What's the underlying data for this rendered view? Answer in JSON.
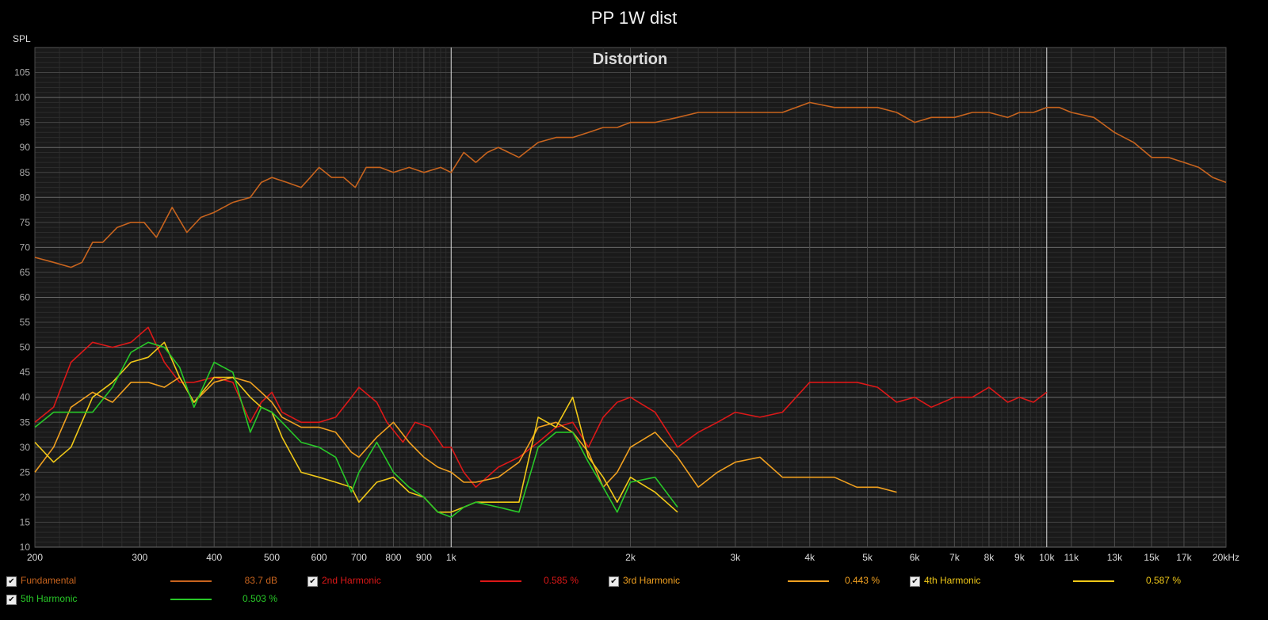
{
  "title": "PP 1W dist",
  "ylabel": "SPL",
  "chart_data": {
    "type": "line",
    "title": "Distortion",
    "x_scale": "log",
    "xlim": [
      200,
      20000
    ],
    "ylim": [
      10,
      110
    ],
    "y_ticks": [
      10,
      15,
      20,
      25,
      30,
      35,
      40,
      45,
      50,
      55,
      60,
      65,
      70,
      75,
      80,
      85,
      90,
      95,
      100,
      105
    ],
    "x_ticks": [
      {
        "v": 200,
        "l": "200"
      },
      {
        "v": 300,
        "l": "300"
      },
      {
        "v": 400,
        "l": "400"
      },
      {
        "v": 500,
        "l": "500"
      },
      {
        "v": 600,
        "l": "600"
      },
      {
        "v": 700,
        "l": "700"
      },
      {
        "v": 800,
        "l": "800"
      },
      {
        "v": 900,
        "l": "900"
      },
      {
        "v": 1000,
        "l": "1k"
      },
      {
        "v": 2000,
        "l": "2k"
      },
      {
        "v": 3000,
        "l": "3k"
      },
      {
        "v": 4000,
        "l": "4k"
      },
      {
        "v": 5000,
        "l": "5k"
      },
      {
        "v": 6000,
        "l": "6k"
      },
      {
        "v": 7000,
        "l": "7k"
      },
      {
        "v": 8000,
        "l": "8k"
      },
      {
        "v": 9000,
        "l": "9k"
      },
      {
        "v": 10000,
        "l": "10k"
      },
      {
        "v": 11000,
        "l": "11k"
      },
      {
        "v": 13000,
        "l": "13k"
      },
      {
        "v": 15000,
        "l": "15k"
      },
      {
        "v": 17000,
        "l": "17k"
      },
      {
        "v": 20000,
        "l": "20kHz"
      }
    ],
    "series": [
      {
        "name": "Fundamental",
        "color": "#c8641e",
        "legend_value": "83.7 dB",
        "points": [
          [
            200,
            68
          ],
          [
            215,
            67
          ],
          [
            230,
            66
          ],
          [
            240,
            67
          ],
          [
            250,
            71
          ],
          [
            260,
            71
          ],
          [
            275,
            74
          ],
          [
            290,
            75
          ],
          [
            305,
            75
          ],
          [
            320,
            72
          ],
          [
            340,
            78
          ],
          [
            360,
            73
          ],
          [
            380,
            76
          ],
          [
            400,
            77
          ],
          [
            430,
            79
          ],
          [
            460,
            80
          ],
          [
            480,
            83
          ],
          [
            500,
            84
          ],
          [
            530,
            83
          ],
          [
            560,
            82
          ],
          [
            580,
            84
          ],
          [
            600,
            86
          ],
          [
            630,
            84
          ],
          [
            660,
            84
          ],
          [
            690,
            82
          ],
          [
            720,
            86
          ],
          [
            760,
            86
          ],
          [
            800,
            85
          ],
          [
            850,
            86
          ],
          [
            900,
            85
          ],
          [
            960,
            86
          ],
          [
            1000,
            85
          ],
          [
            1050,
            89
          ],
          [
            1100,
            87
          ],
          [
            1150,
            89
          ],
          [
            1200,
            90
          ],
          [
            1300,
            88
          ],
          [
            1400,
            91
          ],
          [
            1500,
            92
          ],
          [
            1600,
            92
          ],
          [
            1700,
            93
          ],
          [
            1800,
            94
          ],
          [
            1900,
            94
          ],
          [
            2000,
            95
          ],
          [
            2200,
            95
          ],
          [
            2400,
            96
          ],
          [
            2600,
            97
          ],
          [
            2800,
            97
          ],
          [
            3000,
            97
          ],
          [
            3300,
            97
          ],
          [
            3600,
            97
          ],
          [
            4000,
            99
          ],
          [
            4400,
            98
          ],
          [
            4800,
            98
          ],
          [
            5200,
            98
          ],
          [
            5600,
            97
          ],
          [
            6000,
            95
          ],
          [
            6400,
            96
          ],
          [
            7000,
            96
          ],
          [
            7500,
            97
          ],
          [
            8000,
            97
          ],
          [
            8600,
            96
          ],
          [
            9000,
            97
          ],
          [
            9500,
            97
          ],
          [
            10000,
            98
          ],
          [
            10500,
            98
          ],
          [
            11000,
            97
          ],
          [
            12000,
            96
          ],
          [
            13000,
            93
          ],
          [
            14000,
            91
          ],
          [
            15000,
            88
          ],
          [
            16000,
            88
          ],
          [
            17000,
            87
          ],
          [
            18000,
            86
          ],
          [
            19000,
            84
          ],
          [
            20000,
            83
          ]
        ]
      },
      {
        "name": "2nd Harmonic",
        "color": "#dd1818",
        "legend_value": "0.585 %",
        "points": [
          [
            200,
            35
          ],
          [
            215,
            38
          ],
          [
            230,
            47
          ],
          [
            250,
            51
          ],
          [
            270,
            50
          ],
          [
            290,
            51
          ],
          [
            310,
            54
          ],
          [
            330,
            47
          ],
          [
            350,
            43
          ],
          [
            370,
            43
          ],
          [
            400,
            44
          ],
          [
            430,
            43
          ],
          [
            460,
            35
          ],
          [
            480,
            39
          ],
          [
            500,
            41
          ],
          [
            520,
            37
          ],
          [
            560,
            35
          ],
          [
            600,
            35
          ],
          [
            640,
            36
          ],
          [
            680,
            40
          ],
          [
            700,
            42
          ],
          [
            750,
            39
          ],
          [
            780,
            35
          ],
          [
            830,
            31
          ],
          [
            870,
            35
          ],
          [
            920,
            34
          ],
          [
            970,
            30
          ],
          [
            1000,
            30
          ],
          [
            1050,
            25
          ],
          [
            1100,
            22
          ],
          [
            1200,
            26
          ],
          [
            1300,
            28
          ],
          [
            1400,
            31
          ],
          [
            1500,
            34
          ],
          [
            1600,
            35
          ],
          [
            1700,
            30
          ],
          [
            1800,
            36
          ],
          [
            1900,
            39
          ],
          [
            2000,
            40
          ],
          [
            2200,
            37
          ],
          [
            2400,
            30
          ],
          [
            2600,
            33
          ],
          [
            2800,
            35
          ],
          [
            3000,
            37
          ],
          [
            3300,
            36
          ],
          [
            3600,
            37
          ],
          [
            4000,
            43
          ],
          [
            4400,
            43
          ],
          [
            4800,
            43
          ],
          [
            5200,
            42
          ],
          [
            5600,
            39
          ],
          [
            6000,
            40
          ],
          [
            6400,
            38
          ],
          [
            7000,
            40
          ],
          [
            7500,
            40
          ],
          [
            8000,
            42
          ],
          [
            8600,
            39
          ],
          [
            9000,
            40
          ],
          [
            9500,
            39
          ],
          [
            10000,
            41
          ]
        ]
      },
      {
        "name": "3rd Harmonic",
        "color": "#f0a020",
        "legend_value": "0.443 %",
        "points": [
          [
            200,
            25
          ],
          [
            215,
            30
          ],
          [
            230,
            38
          ],
          [
            250,
            41
          ],
          [
            270,
            39
          ],
          [
            290,
            43
          ],
          [
            310,
            43
          ],
          [
            330,
            42
          ],
          [
            350,
            44
          ],
          [
            370,
            39
          ],
          [
            400,
            43
          ],
          [
            430,
            44
          ],
          [
            460,
            43
          ],
          [
            480,
            41
          ],
          [
            500,
            39
          ],
          [
            520,
            36
          ],
          [
            560,
            34
          ],
          [
            600,
            34
          ],
          [
            640,
            33
          ],
          [
            680,
            29
          ],
          [
            700,
            28
          ],
          [
            750,
            32
          ],
          [
            800,
            35
          ],
          [
            850,
            31
          ],
          [
            900,
            28
          ],
          [
            950,
            26
          ],
          [
            1000,
            25
          ],
          [
            1050,
            23
          ],
          [
            1100,
            23
          ],
          [
            1200,
            24
          ],
          [
            1300,
            27
          ],
          [
            1400,
            34
          ],
          [
            1500,
            35
          ],
          [
            1600,
            33
          ],
          [
            1700,
            29
          ],
          [
            1800,
            22
          ],
          [
            1900,
            25
          ],
          [
            2000,
            30
          ],
          [
            2200,
            33
          ],
          [
            2400,
            28
          ],
          [
            2600,
            22
          ],
          [
            2800,
            25
          ],
          [
            3000,
            27
          ],
          [
            3300,
            28
          ],
          [
            3600,
            24
          ],
          [
            4000,
            24
          ],
          [
            4400,
            24
          ],
          [
            4800,
            22
          ],
          [
            5200,
            22
          ],
          [
            5600,
            21
          ]
        ]
      },
      {
        "name": "4th Harmonic",
        "color": "#f0c818",
        "legend_value": "0.587 %",
        "points": [
          [
            200,
            31
          ],
          [
            215,
            27
          ],
          [
            230,
            30
          ],
          [
            250,
            40
          ],
          [
            270,
            43
          ],
          [
            290,
            47
          ],
          [
            310,
            48
          ],
          [
            330,
            51
          ],
          [
            350,
            44
          ],
          [
            370,
            39
          ],
          [
            400,
            44
          ],
          [
            430,
            44
          ],
          [
            460,
            40
          ],
          [
            480,
            38
          ],
          [
            500,
            37
          ],
          [
            520,
            32
          ],
          [
            560,
            25
          ],
          [
            600,
            24
          ],
          [
            640,
            23
          ],
          [
            680,
            22
          ],
          [
            700,
            19
          ],
          [
            750,
            23
          ],
          [
            800,
            24
          ],
          [
            850,
            21
          ],
          [
            900,
            20
          ],
          [
            950,
            17
          ],
          [
            1000,
            17
          ],
          [
            1050,
            18
          ],
          [
            1100,
            19
          ],
          [
            1200,
            19
          ],
          [
            1300,
            19
          ],
          [
            1400,
            36
          ],
          [
            1500,
            34
          ],
          [
            1600,
            40
          ],
          [
            1700,
            28
          ],
          [
            1800,
            24
          ],
          [
            1900,
            19
          ],
          [
            2000,
            24
          ],
          [
            2200,
            21
          ],
          [
            2400,
            17
          ]
        ]
      },
      {
        "name": "5th Harmonic",
        "color": "#28c828",
        "legend_value": "0.503 %",
        "points": [
          [
            200,
            34
          ],
          [
            215,
            37
          ],
          [
            230,
            37
          ],
          [
            250,
            37
          ],
          [
            270,
            42
          ],
          [
            290,
            49
          ],
          [
            310,
            51
          ],
          [
            330,
            50
          ],
          [
            350,
            46
          ],
          [
            370,
            38
          ],
          [
            400,
            47
          ],
          [
            430,
            45
          ],
          [
            460,
            33
          ],
          [
            480,
            38
          ],
          [
            500,
            37
          ],
          [
            520,
            35
          ],
          [
            560,
            31
          ],
          [
            600,
            30
          ],
          [
            640,
            28
          ],
          [
            680,
            21
          ],
          [
            700,
            25
          ],
          [
            750,
            31
          ],
          [
            800,
            25
          ],
          [
            850,
            22
          ],
          [
            900,
            20
          ],
          [
            950,
            17
          ],
          [
            1000,
            16
          ],
          [
            1050,
            18
          ],
          [
            1100,
            19
          ],
          [
            1200,
            18
          ],
          [
            1300,
            17
          ],
          [
            1400,
            30
          ],
          [
            1500,
            33
          ],
          [
            1600,
            33
          ],
          [
            1700,
            27
          ],
          [
            1800,
            22
          ],
          [
            1900,
            17
          ],
          [
            2000,
            23
          ],
          [
            2200,
            24
          ],
          [
            2400,
            18
          ]
        ]
      }
    ]
  }
}
